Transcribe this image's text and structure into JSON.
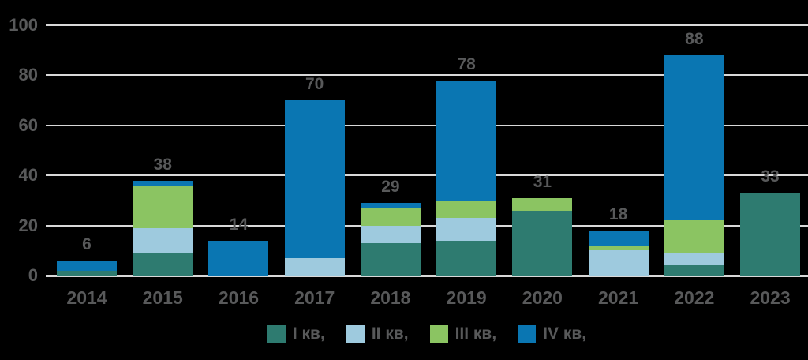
{
  "chart_data": {
    "type": "bar",
    "stacked": true,
    "title": "",
    "xlabel": "",
    "ylabel": "",
    "categories": [
      "2014",
      "2015",
      "2016",
      "2017",
      "2018",
      "2019",
      "2020",
      "2021",
      "2022",
      "2023"
    ],
    "series": [
      {
        "name": "I кв,",
        "color": "#2e7b70",
        "values": [
          2,
          9,
          0,
          0,
          13,
          14,
          26,
          0,
          4,
          33
        ]
      },
      {
        "name": "II кв,",
        "color": "#9ecade",
        "values": [
          0,
          10,
          0,
          7,
          7,
          9,
          0,
          10,
          5,
          0
        ]
      },
      {
        "name": "III кв,",
        "color": "#8bc462",
        "values": [
          0,
          17,
          0,
          0,
          7,
          7,
          5,
          2,
          13,
          0
        ]
      },
      {
        "name": "IV кв,",
        "color": "#0a76b2",
        "values": [
          4,
          2,
          14,
          63,
          2,
          48,
          0,
          6,
          66,
          0
        ]
      }
    ],
    "totals": [
      6,
      38,
      14,
      70,
      29,
      78,
      31,
      18,
      88,
      33
    ],
    "yticks": [
      0,
      20,
      40,
      60,
      80,
      100
    ],
    "ylim": [
      0,
      100
    ],
    "grid": true,
    "legend_position": "bottom"
  },
  "style": {
    "background": "#000000",
    "gridline_color": "#d8d8d8",
    "text_color": "#58595a"
  }
}
